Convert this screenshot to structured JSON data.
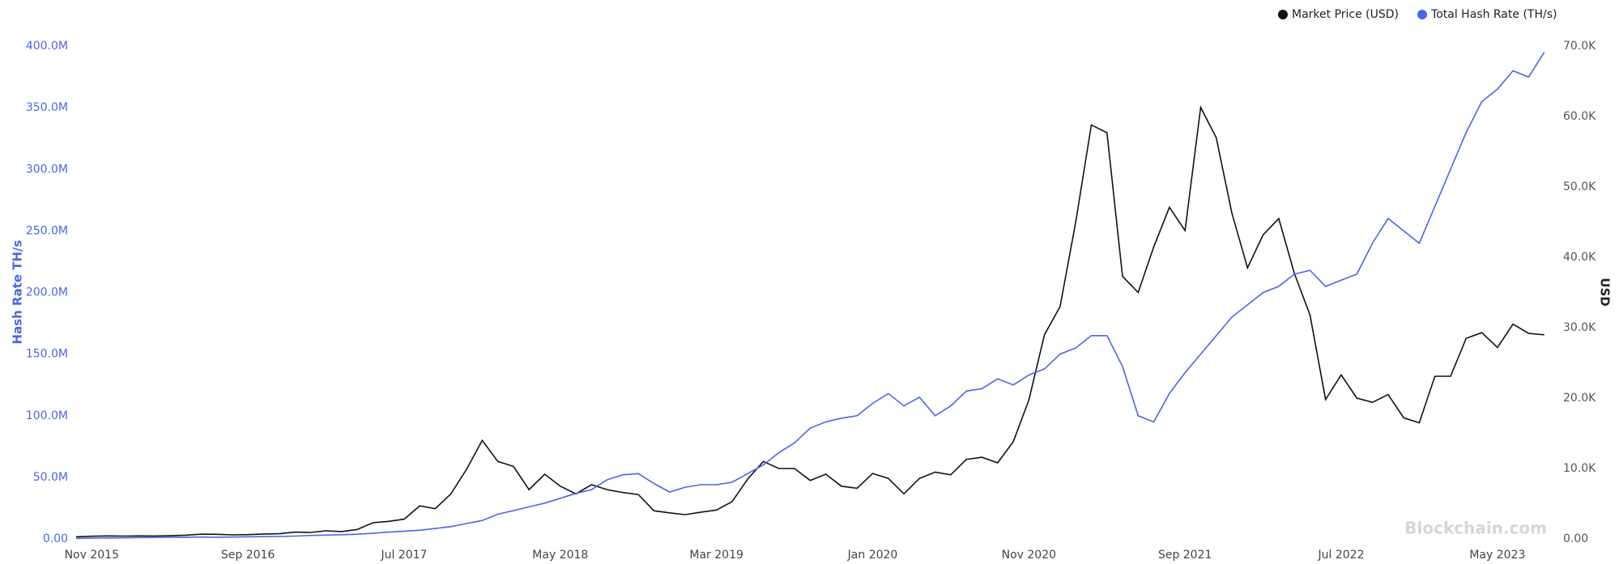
{
  "chart_data": {
    "type": "line",
    "x": [
      "2015-10",
      "2015-11",
      "2015-12",
      "2016-01",
      "2016-02",
      "2016-03",
      "2016-04",
      "2016-05",
      "2016-06",
      "2016-07",
      "2016-08",
      "2016-09",
      "2016-10",
      "2016-11",
      "2016-12",
      "2017-01",
      "2017-02",
      "2017-03",
      "2017-04",
      "2017-05",
      "2017-06",
      "2017-07",
      "2017-08",
      "2017-09",
      "2017-10",
      "2017-11",
      "2017-12",
      "2018-01",
      "2018-02",
      "2018-03",
      "2018-04",
      "2018-05",
      "2018-06",
      "2018-07",
      "2018-08",
      "2018-09",
      "2018-10",
      "2018-11",
      "2018-12",
      "2019-01",
      "2019-02",
      "2019-03",
      "2019-04",
      "2019-05",
      "2019-06",
      "2019-07",
      "2019-08",
      "2019-09",
      "2019-10",
      "2019-11",
      "2019-12",
      "2020-01",
      "2020-02",
      "2020-03",
      "2020-04",
      "2020-05",
      "2020-06",
      "2020-07",
      "2020-08",
      "2020-09",
      "2020-10",
      "2020-11",
      "2020-12",
      "2021-01",
      "2021-02",
      "2021-03",
      "2021-04",
      "2021-05",
      "2021-06",
      "2021-07",
      "2021-08",
      "2021-09",
      "2021-10",
      "2021-11",
      "2021-12",
      "2022-01",
      "2022-02",
      "2022-03",
      "2022-04",
      "2022-05",
      "2022-06",
      "2022-07",
      "2022-08",
      "2022-09",
      "2022-10",
      "2022-11",
      "2022-12",
      "2023-01",
      "2023-02",
      "2023-03",
      "2023-04",
      "2023-05",
      "2023-06",
      "2023-07",
      "2023-08"
    ],
    "series": [
      {
        "name": "Market Price (USD)",
        "color": "#111111",
        "axis": "y2",
        "values": [
          300,
          380,
          430,
          400,
          420,
          415,
          450,
          530,
          670,
          660,
          575,
          610,
          700,
          740,
          960,
          920,
          1150,
          1050,
          1350,
          2300,
          2500,
          2800,
          4700,
          4300,
          6400,
          9900,
          14000,
          11000,
          10300,
          7000,
          9200,
          7500,
          6400,
          7700,
          7000,
          6600,
          6300,
          4000,
          3700,
          3450,
          3800,
          4100,
          5300,
          8500,
          11000,
          10000,
          10000,
          8300,
          9200,
          7500,
          7200,
          9300,
          8600,
          6400,
          8600,
          9500,
          9100,
          11300,
          11600,
          10800,
          13800,
          19700,
          29000,
          33000,
          45000,
          58800,
          57700,
          37300,
          35000,
          41500,
          47100,
          43800,
          61300,
          57000,
          46300,
          38500,
          43200,
          45500,
          37700,
          31800,
          19800,
          23300,
          20000,
          19400,
          20500,
          17200,
          16500,
          23100,
          23100,
          28500,
          29300,
          27200,
          30500,
          29200,
          29000
        ]
      },
      {
        "name": "Total Hash Rate (TH/s)",
        "color": "#4a66ea",
        "values": [
          450000,
          600000,
          800000,
          850000,
          1100000,
          1200000,
          1350000,
          1400000,
          1500000,
          1400000,
          1500000,
          1700000,
          1900000,
          2000000,
          2300000,
          2800000,
          3100000,
          3400000,
          3800000,
          4500000,
          5500000,
          6300000,
          7000000,
          8500000,
          10000000,
          12500000,
          15000000,
          20000000,
          23000000,
          26000000,
          29000000,
          33000000,
          37000000,
          40000000,
          48000000,
          52000000,
          53000000,
          45000000,
          38000000,
          42000000,
          44000000,
          44000000,
          46000000,
          53000000,
          60000000,
          70000000,
          78000000,
          90000000,
          95000000,
          98000000,
          100000000,
          110000000,
          118000000,
          108000000,
          115000000,
          100000000,
          108000000,
          120000000,
          122000000,
          130000000,
          125000000,
          133000000,
          138000000,
          150000000,
          155000000,
          165000000,
          165000000,
          140000000,
          100000000,
          95000000,
          118000000,
          135000000,
          150000000,
          165000000,
          180000000,
          190000000,
          200000000,
          205000000,
          215000000,
          218000000,
          205000000,
          210000000,
          215000000,
          240000000,
          260000000,
          250000000,
          240000000,
          270000000,
          300000000,
          330000000,
          355000000,
          365000000,
          380000000,
          375000000,
          395000000
        ]
      }
    ],
    "xlim": [
      "2015-10",
      "2023-09"
    ],
    "xticks": [
      {
        "value": "2015-11",
        "label": "Nov 2015"
      },
      {
        "value": "2016-09",
        "label": "Sep 2016"
      },
      {
        "value": "2017-07",
        "label": "Jul 2017"
      },
      {
        "value": "2018-05",
        "label": "May 2018"
      },
      {
        "value": "2019-03",
        "label": "Mar 2019"
      },
      {
        "value": "2020-01",
        "label": "Jan 2020"
      },
      {
        "value": "2020-11",
        "label": "Nov 2020"
      },
      {
        "value": "2021-09",
        "label": "Sep 2021"
      },
      {
        "value": "2022-07",
        "label": "Jul 2022"
      },
      {
        "value": "2023-05",
        "label": "May 2023"
      }
    ],
    "ylim": [
      0,
      400000000
    ],
    "yticks": [
      {
        "value": 0,
        "label": "0.00"
      },
      {
        "value": 50000000,
        "label": "50.0M"
      },
      {
        "value": 100000000,
        "label": "100.0M"
      },
      {
        "value": 150000000,
        "label": "150.0M"
      },
      {
        "value": 200000000,
        "label": "200.0M"
      },
      {
        "value": 250000000,
        "label": "250.0M"
      },
      {
        "value": 300000000,
        "label": "300.0M"
      },
      {
        "value": 350000000,
        "label": "350.0M"
      },
      {
        "value": 400000000,
        "label": "400.0M"
      }
    ],
    "y2lim": [
      0,
      70000
    ],
    "y2ticks": [
      {
        "value": 0,
        "label": "0.00"
      },
      {
        "value": 10000,
        "label": "10.0K"
      },
      {
        "value": 20000,
        "label": "20.0K"
      },
      {
        "value": 30000,
        "label": "30.0K"
      },
      {
        "value": 40000,
        "label": "40.0K"
      },
      {
        "value": 50000,
        "label": "50.0K"
      },
      {
        "value": 60000,
        "label": "60.0K"
      },
      {
        "value": 70000,
        "label": "70.0K"
      }
    ],
    "ylabel": "Hash Rate TH/s",
    "y2label": "USD",
    "watermark": "Blockchain.com",
    "grid": false
  }
}
